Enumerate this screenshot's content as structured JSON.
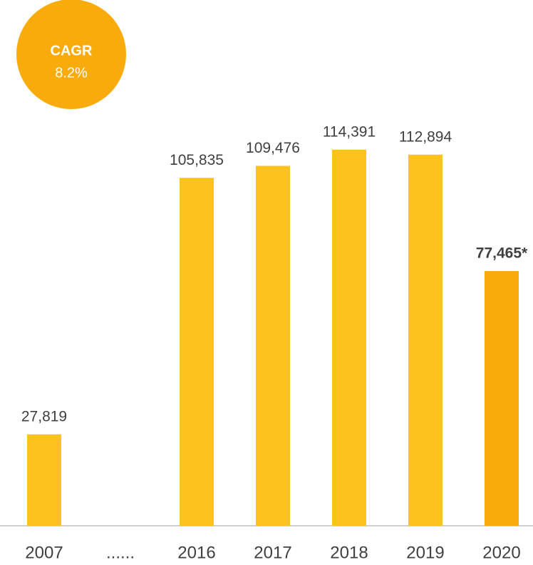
{
  "chart_data": {
    "type": "bar",
    "categories": [
      "2007",
      "......",
      "2016",
      "2017",
      "2018",
      "2019",
      "2020"
    ],
    "values": [
      27819,
      null,
      105835,
      109476,
      114391,
      112894,
      77465
    ],
    "value_labels": [
      "27,819",
      null,
      "105,835",
      "109,476",
      "114,391",
      "112,894",
      "77,465*"
    ],
    "colors": [
      "#fcc31e",
      null,
      "#fcc31e",
      "#fcc31e",
      "#fcc31e",
      "#fcc31e",
      "#f9ab0b"
    ],
    "ylim": [
      0,
      120000
    ],
    "annotation": {
      "title": "CAGR",
      "text": "8.2%",
      "color": "#f9ab0b"
    }
  }
}
